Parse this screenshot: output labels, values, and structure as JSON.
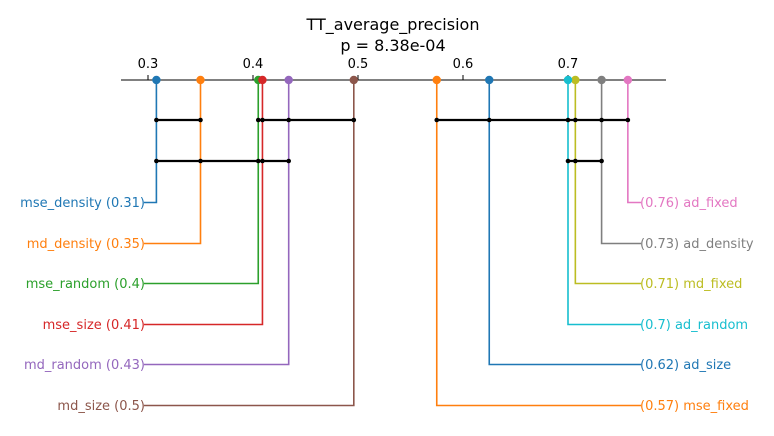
{
  "chart_data": {
    "type": "critical-difference-diagram",
    "title": "TT_average_precision",
    "subtitle": "p = 8.38e-04",
    "axis": {
      "ticks": [
        0.3,
        0.4,
        0.5,
        0.6,
        0.7
      ],
      "tick_labels": [
        "0.3",
        "0.4",
        "0.5",
        "0.6",
        "0.7"
      ],
      "range": [
        0.27,
        0.785
      ],
      "position": "top"
    },
    "methods": [
      {
        "name": "mse_density",
        "value": 0.308,
        "label": "mse_density (0.31)",
        "color": "#1f77b4",
        "side": "left"
      },
      {
        "name": "md_density",
        "value": 0.35,
        "label": "md_density (0.35)",
        "color": "#ff7f0e",
        "side": "left"
      },
      {
        "name": "mse_random",
        "value": 0.405,
        "label": "mse_random (0.4)",
        "color": "#2ca02c",
        "side": "left"
      },
      {
        "name": "mse_size",
        "value": 0.409,
        "label": "mse_size (0.41)",
        "color": "#d62728",
        "side": "left"
      },
      {
        "name": "md_random",
        "value": 0.434,
        "label": "md_random (0.43)",
        "color": "#9467bd",
        "side": "left"
      },
      {
        "name": "md_size",
        "value": 0.496,
        "label": "md_size (0.5)",
        "color": "#8c564b",
        "side": "left"
      },
      {
        "name": "ad_fixed",
        "value": 0.757,
        "label": "(0.76) ad_fixed",
        "color": "#e377c2",
        "side": "right"
      },
      {
        "name": "ad_density",
        "value": 0.732,
        "label": "(0.73) ad_density",
        "color": "#7f7f7f",
        "side": "right"
      },
      {
        "name": "md_fixed",
        "value": 0.707,
        "label": "(0.71) md_fixed",
        "color": "#bcbd22",
        "side": "right"
      },
      {
        "name": "ad_random",
        "value": 0.7,
        "label": "(0.7) ad_random",
        "color": "#17becf",
        "side": "right"
      },
      {
        "name": "ad_size",
        "value": 0.625,
        "label": "(0.62) ad_size",
        "color": "#1f77b4",
        "side": "right"
      },
      {
        "name": "mse_fixed",
        "value": 0.575,
        "label": "(0.57) mse_fixed",
        "color": "#ff7f0e",
        "side": "right"
      }
    ],
    "cliques": [
      {
        "members": [
          "mse_density",
          "md_density"
        ]
      },
      {
        "members": [
          "mse_random",
          "mse_size",
          "md_random",
          "md_size"
        ]
      },
      {
        "members": [
          "mse_fixed",
          "ad_size",
          "ad_random",
          "md_fixed",
          "ad_density",
          "ad_fixed"
        ]
      },
      {
        "members": [
          "mse_density",
          "md_density",
          "mse_random",
          "mse_size",
          "md_random"
        ]
      },
      {
        "members": [
          "ad_random",
          "md_fixed",
          "ad_density"
        ]
      }
    ]
  }
}
